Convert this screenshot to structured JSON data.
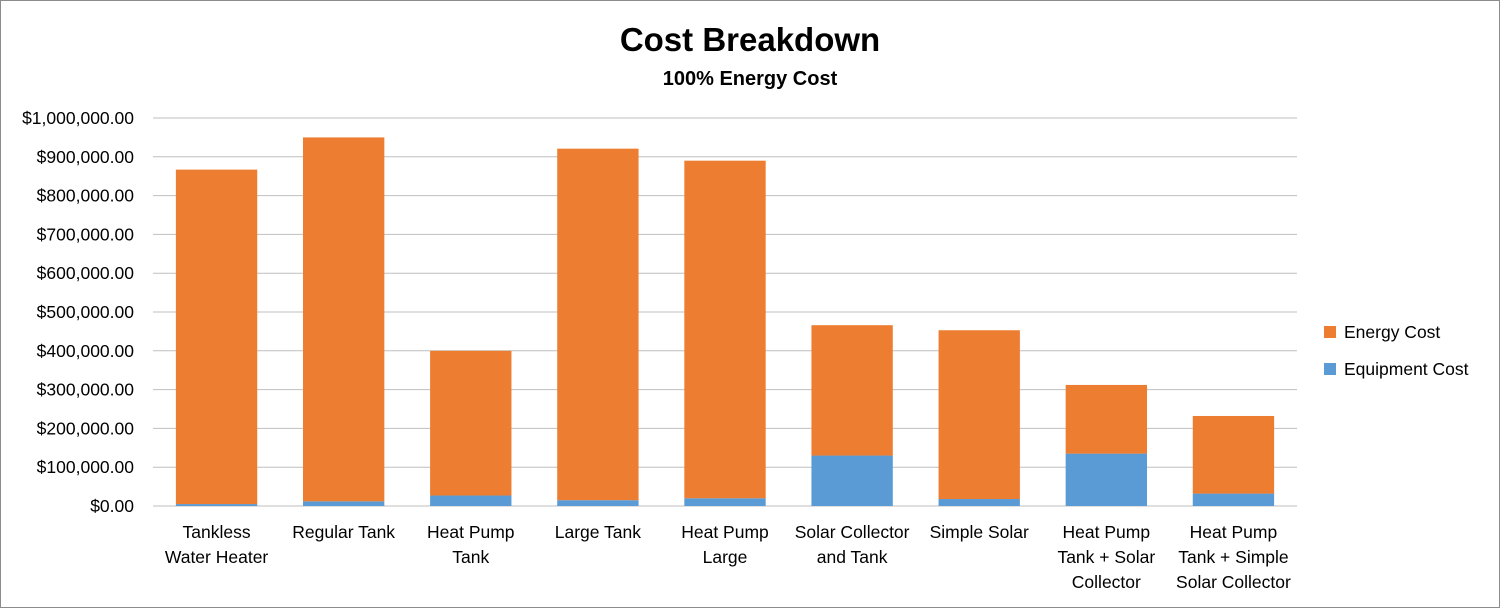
{
  "chart_data": {
    "type": "bar",
    "stacked": true,
    "title": "Cost Breakdown",
    "subtitle": "100% Energy Cost",
    "xlabel": "",
    "ylabel": "",
    "ylim": [
      0,
      1000000
    ],
    "yticks": [
      0,
      100000,
      200000,
      300000,
      400000,
      500000,
      600000,
      700000,
      800000,
      900000,
      1000000
    ],
    "ytick_labels": [
      "$0.00",
      "$100,000.00",
      "$200,000.00",
      "$300,000.00",
      "$400,000.00",
      "$500,000.00",
      "$600,000.00",
      "$700,000.00",
      "$800,000.00",
      "$900,000.00",
      "$1,000,000.00"
    ],
    "grid": true,
    "legend_position": "right",
    "categories": [
      [
        "Tankless",
        "Water Heater"
      ],
      [
        "Regular Tank"
      ],
      [
        "Heat Pump",
        "Tank"
      ],
      [
        "Large Tank"
      ],
      [
        "Heat Pump",
        "Large"
      ],
      [
        "Solar Collector",
        "and Tank"
      ],
      [
        "Simple Solar"
      ],
      [
        "Heat Pump",
        "Tank + Solar",
        "Collector"
      ],
      [
        "Heat Pump",
        "Tank + Simple",
        "Solar Collector"
      ]
    ],
    "series": [
      {
        "name": "Equipment Cost",
        "color": "#5b9bd5",
        "values": [
          5000,
          12000,
          27000,
          15000,
          20000,
          130000,
          18000,
          135000,
          32000
        ]
      },
      {
        "name": "Energy Cost",
        "color": "#ed7d31",
        "values": [
          862000,
          938000,
          373000,
          906000,
          870000,
          336000,
          435000,
          177000,
          200000
        ]
      }
    ],
    "legend_order": [
      "Energy Cost",
      "Equipment Cost"
    ]
  }
}
